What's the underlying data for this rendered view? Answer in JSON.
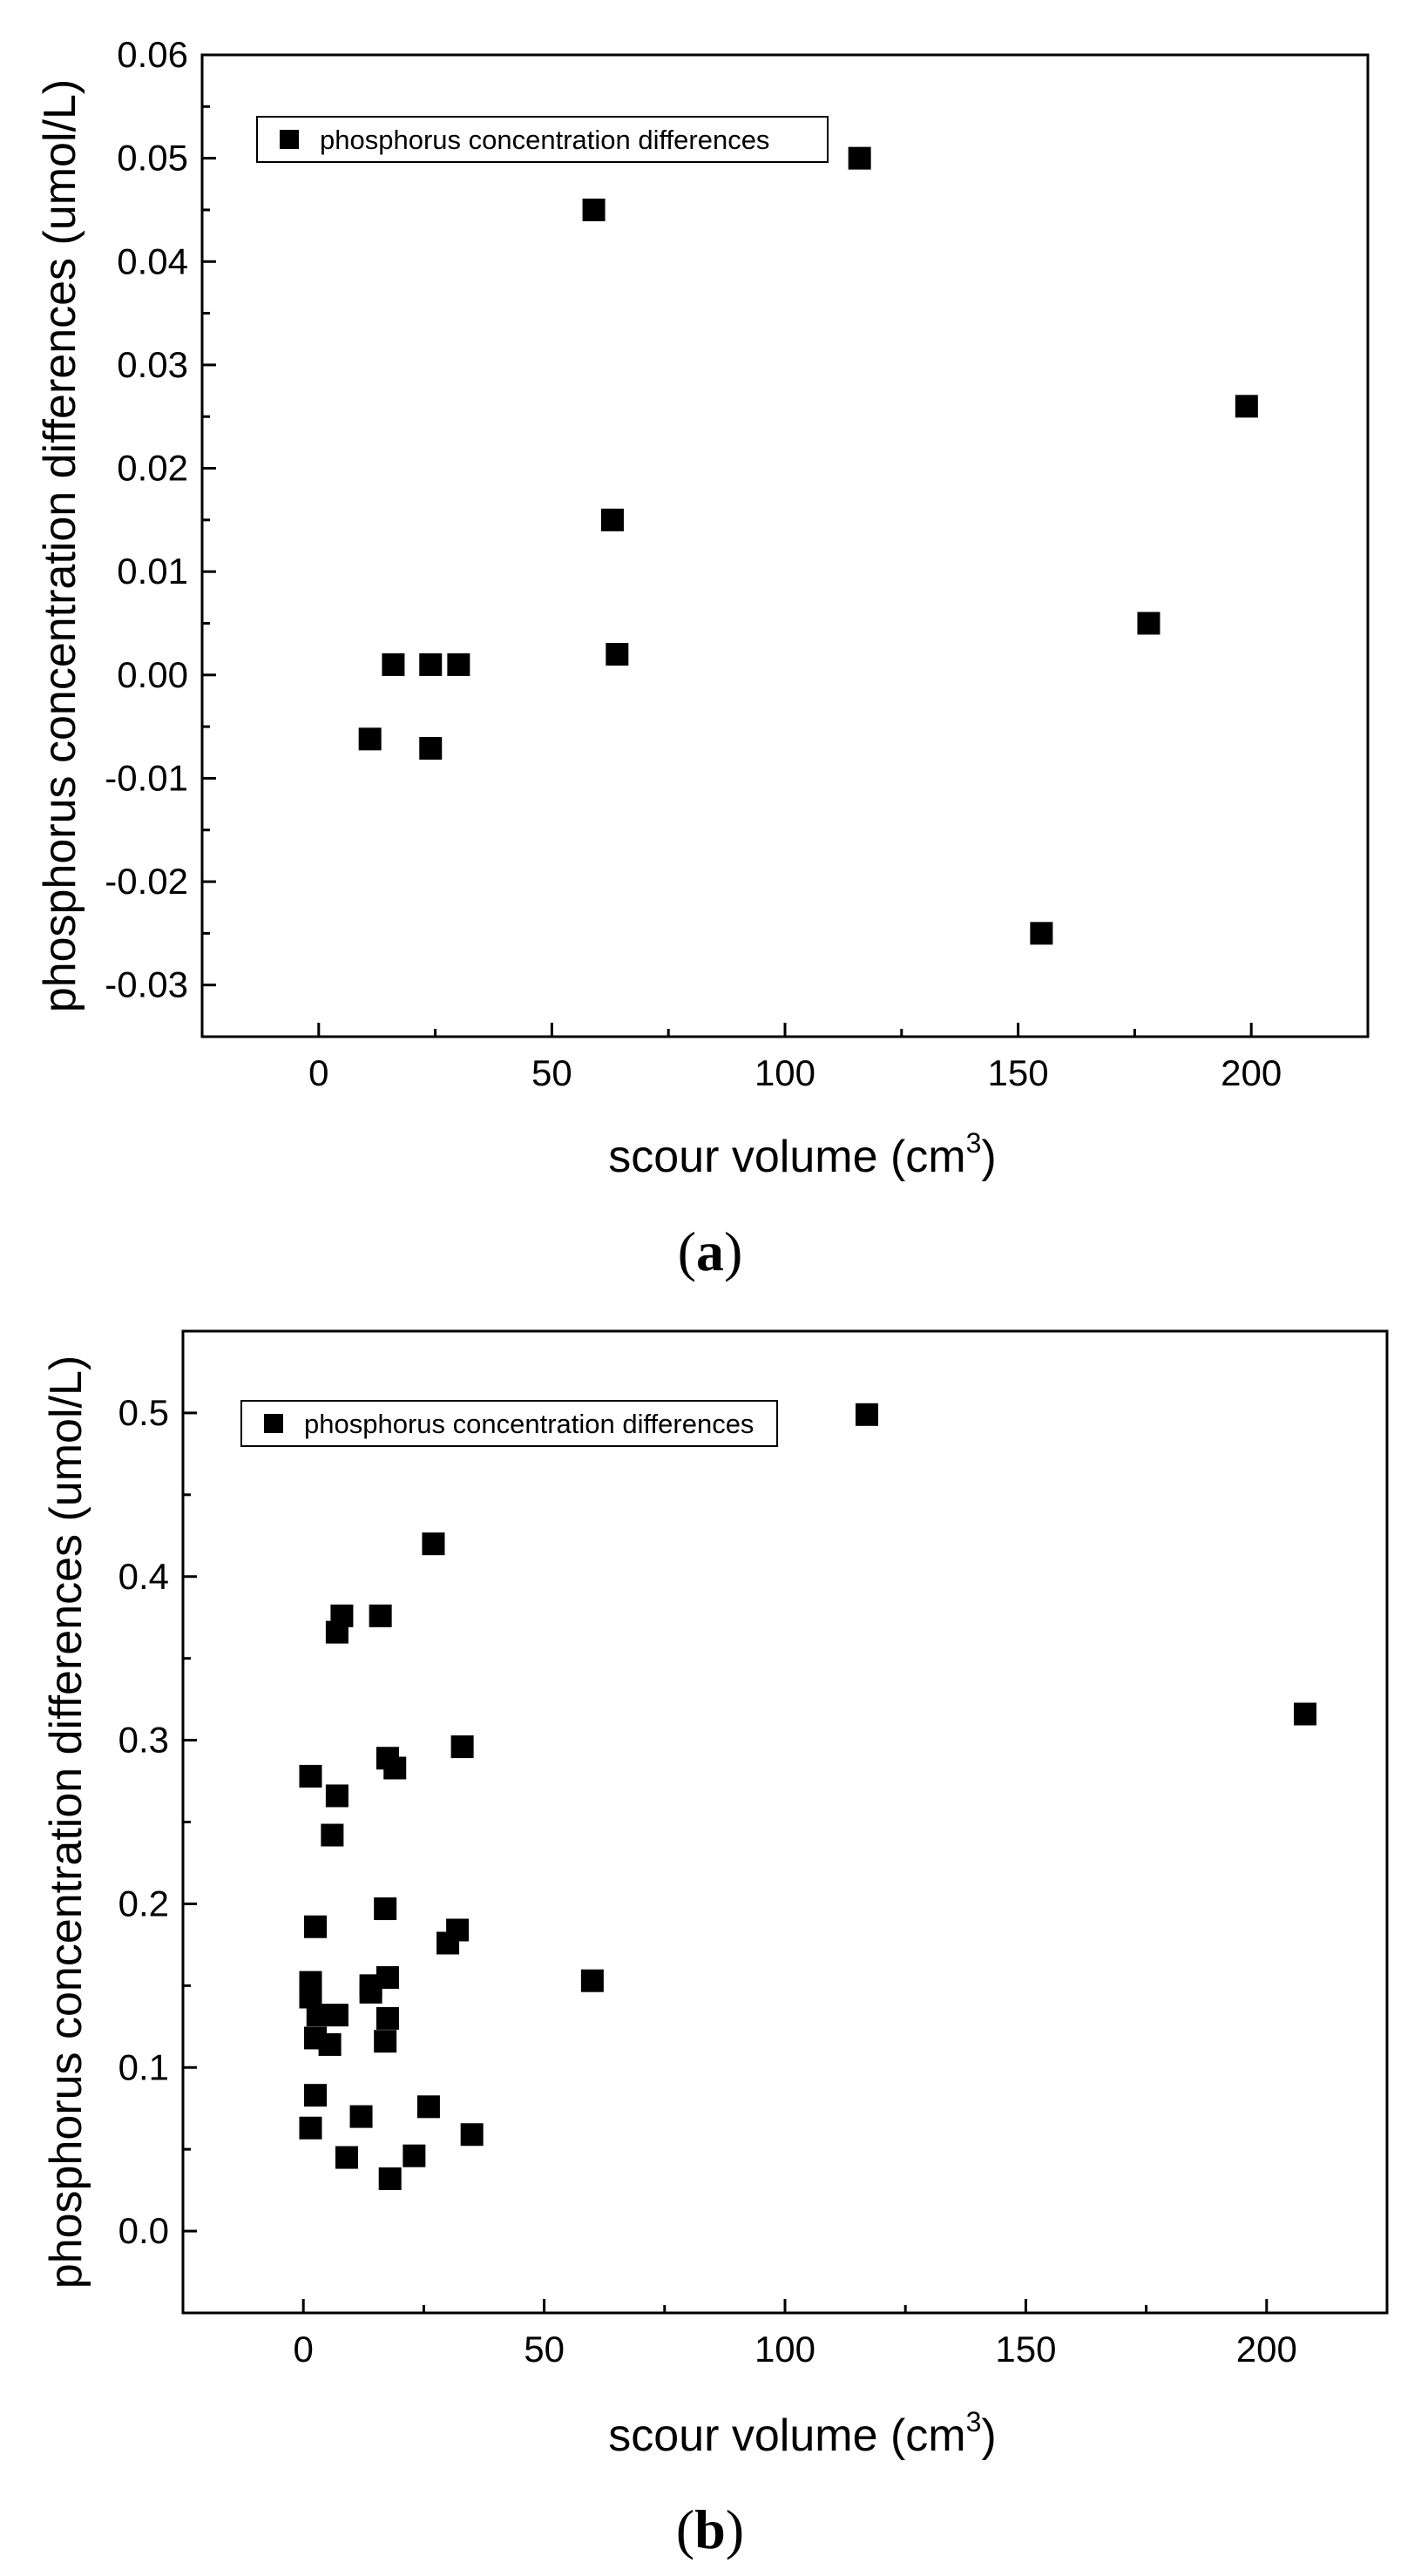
{
  "chart_data": [
    {
      "type": "scatter",
      "panel_label": "a",
      "title": "",
      "xlabel": "scour volume (cm",
      "xlabel_sup": "3",
      "xlabel_close": ")",
      "ylabel": "phosphorus concentration differences (umol/L)",
      "xlim": [
        -25,
        225
      ],
      "ylim": [
        -0.035,
        0.06
      ],
      "xticks": [
        0,
        50,
        100,
        150,
        200
      ],
      "xtick_labels": [
        "0",
        "50",
        "100",
        "150",
        "200"
      ],
      "yticks": [
        -0.03,
        -0.02,
        -0.01,
        0.0,
        0.01,
        0.02,
        0.03,
        0.04,
        0.05,
        0.06
      ],
      "ytick_labels": [
        "-0.03",
        "-0.02",
        "-0.01",
        "0.00",
        "0.01",
        "0.02",
        "0.03",
        "0.04",
        "0.05",
        "0.06"
      ],
      "legend": "phosphorus concentration differences",
      "legend_position": "top-left",
      "series": [
        {
          "name": "phosphorus concentration differences",
          "points": [
            [
              11,
              -0.0062
            ],
            [
              16,
              0.001
            ],
            [
              24,
              0.001
            ],
            [
              30,
              0.001
            ],
            [
              24,
              -0.0071
            ],
            [
              59,
              0.045
            ],
            [
              63,
              0.015
            ],
            [
              64,
              0.002
            ],
            [
              116,
              0.05
            ],
            [
              155,
              -0.025
            ],
            [
              178,
              0.005
            ],
            [
              199,
              0.026
            ]
          ]
        }
      ]
    },
    {
      "type": "scatter",
      "panel_label": "b",
      "title": "",
      "xlabel": "scour volume (cm",
      "xlabel_sup": "3",
      "xlabel_close": ")",
      "ylabel": "phosphorus concentration differences (umol/L)",
      "xlim": [
        -25,
        225
      ],
      "ylim": [
        -0.05,
        0.55
      ],
      "xticks": [
        0,
        50,
        100,
        150,
        200
      ],
      "xtick_labels": [
        "0",
        "50",
        "100",
        "150",
        "200"
      ],
      "yticks": [
        0.0,
        0.1,
        0.2,
        0.3,
        0.4,
        0.5
      ],
      "ytick_labels": [
        "0.0",
        "0.1",
        "0.2",
        "0.3",
        "0.4",
        "0.5"
      ],
      "legend": "phosphorus concentration differences",
      "legend_position": "top-left",
      "series": [
        {
          "name": "phosphorus concentration differences",
          "points": [
            [
              27,
              0.42
            ],
            [
              8,
              0.376
            ],
            [
              7,
              0.366
            ],
            [
              16,
              0.376
            ],
            [
              1.5,
              0.278
            ],
            [
              7,
              0.266
            ],
            [
              6,
              0.242
            ],
            [
              17.5,
              0.289
            ],
            [
              19,
              0.283
            ],
            [
              33,
              0.296
            ],
            [
              2.5,
              0.186
            ],
            [
              17,
              0.197
            ],
            [
              32,
              0.184
            ],
            [
              30,
              0.176
            ],
            [
              1.5,
              0.152
            ],
            [
              1.5,
              0.143
            ],
            [
              3,
              0.132
            ],
            [
              7,
              0.132
            ],
            [
              14,
              0.15
            ],
            [
              14,
              0.146
            ],
            [
              17.5,
              0.155
            ],
            [
              17.5,
              0.13
            ],
            [
              2.5,
              0.118
            ],
            [
              5.5,
              0.114
            ],
            [
              17,
              0.116
            ],
            [
              2.5,
              0.083
            ],
            [
              1.5,
              0.063
            ],
            [
              12,
              0.07
            ],
            [
              26,
              0.076
            ],
            [
              9,
              0.045
            ],
            [
              23,
              0.046
            ],
            [
              35,
              0.059
            ],
            [
              18,
              0.032
            ],
            [
              60,
              0.153
            ],
            [
              117,
              0.499
            ],
            [
              208,
              0.316
            ]
          ]
        }
      ]
    }
  ]
}
